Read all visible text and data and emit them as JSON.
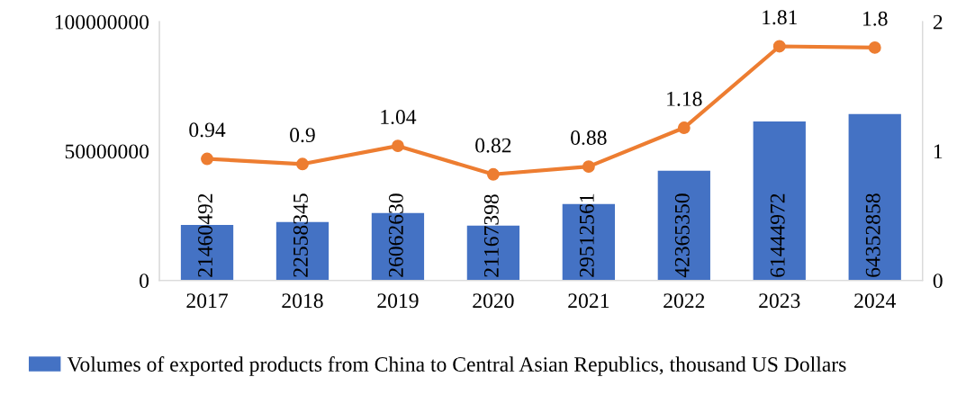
{
  "chart_data": {
    "type": "bar",
    "categories": [
      "2017",
      "2018",
      "2019",
      "2020",
      "2021",
      "2022",
      "2023",
      "2024"
    ],
    "series": [
      {
        "name": "Volumes of exported products from China to Central Asian Republics, thousand US Dollars",
        "color": "#4472c4",
        "values": [
          21460492,
          22558345,
          26062630,
          21167398,
          29512561,
          42365350,
          61444972,
          64352858
        ]
      },
      {
        "type": "line",
        "axis": "y2",
        "color": "#ed7d31",
        "marker": "circle",
        "values": [
          0.94,
          0.9,
          1.04,
          0.82,
          0.88,
          1.18,
          1.81,
          1.8
        ]
      }
    ],
    "ylim": [
      0,
      100000000
    ],
    "yticks": [
      0,
      50000000,
      100000000
    ],
    "y2lim": [
      0,
      2
    ],
    "y2ticks": [
      0,
      1,
      2
    ],
    "data_labels": true,
    "grid": false,
    "legend": "bottom"
  }
}
